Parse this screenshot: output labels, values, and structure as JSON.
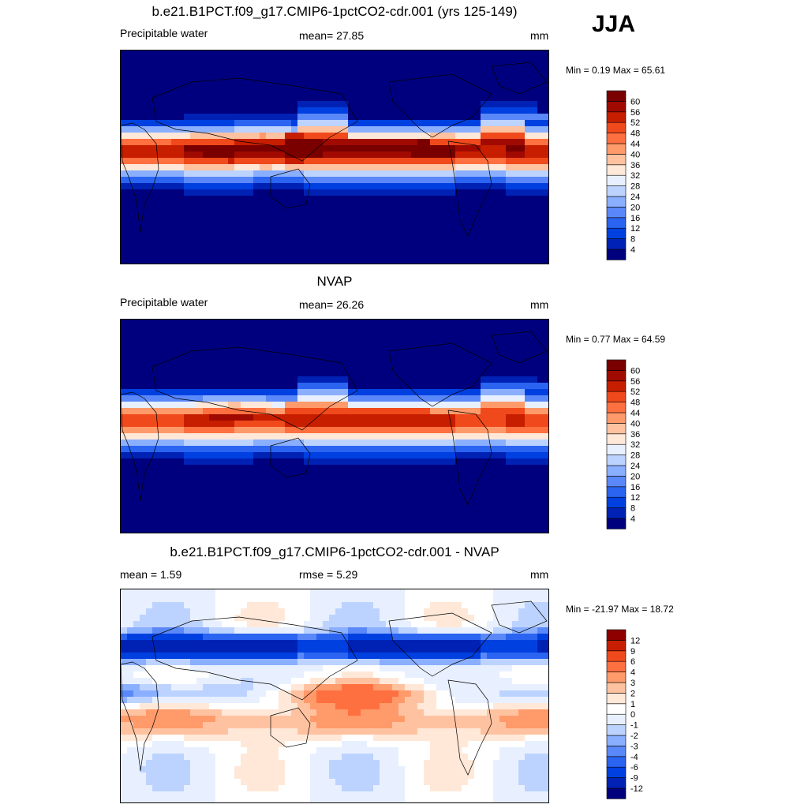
{
  "season": "JJA",
  "colors": {
    "levels14": [
      "#00007f",
      "#0022b4",
      "#0040e0",
      "#2a64f0",
      "#5a88f8",
      "#8bafff",
      "#bdd3ff",
      "#e8f0ff",
      "#ffe8d8",
      "#ffc2a0",
      "#ff9a6a",
      "#ff7040",
      "#f04a1c",
      "#c81e00",
      "#8c0000"
    ],
    "diff15": [
      "#00007f",
      "#0022b4",
      "#0040e0",
      "#2a64f0",
      "#5a88f8",
      "#8bafff",
      "#bdd3ff",
      "#e8f0ff",
      "#ffffff",
      "#ffe8d8",
      "#ffc2a0",
      "#ff9a6a",
      "#ff7040",
      "#f04a1c",
      "#c81e00",
      "#8c0000"
    ]
  },
  "panels": [
    {
      "title": "b.e21.B1PCT.f09_g17.CMIP6-1pctCO2-cdr.001 (yrs 125-149)",
      "left": "Precipitable water",
      "center": "mean=  27.85",
      "right": "mm",
      "minmax": "Min =   0.19 Max =  65.61",
      "levels": [
        "4",
        "8",
        "12",
        "16",
        "20",
        "24",
        "28",
        "32",
        "36",
        "40",
        "44",
        "48",
        "52",
        "56",
        "60"
      ]
    },
    {
      "title": "NVAP",
      "left": "Precipitable water",
      "center": "mean=  26.26",
      "right": "mm",
      "minmax": "Min =   0.77 Max =  64.59",
      "levels": [
        "4",
        "8",
        "12",
        "16",
        "20",
        "24",
        "28",
        "32",
        "36",
        "40",
        "44",
        "48",
        "52",
        "56",
        "60"
      ]
    },
    {
      "title": "b.e21.B1PCT.f09_g17.CMIP6-1pctCO2-cdr.001 - NVAP",
      "left": "mean =   1.59",
      "center": "rmse =   5.29",
      "right": "mm",
      "minmax": "Min = -21.97 Max =  18.72",
      "levels": [
        "-12",
        "-9",
        "-6",
        "-4",
        "-3",
        "-2",
        "-1",
        "0",
        "1",
        "2",
        "3",
        "4",
        "6",
        "9",
        "12"
      ]
    }
  ],
  "chart_data": [
    {
      "type": "heatmap",
      "title": "b.e21.B1PCT.f09_g17.CMIP6-1pctCO2-cdr.001 (yrs 125-149)",
      "variable": "Precipitable water",
      "units": "mm",
      "mean": 27.85,
      "min": 0.19,
      "max": 65.61,
      "contour_levels": [
        4,
        8,
        12,
        16,
        20,
        24,
        28,
        32,
        36,
        40,
        44,
        48,
        52,
        56,
        60
      ]
    },
    {
      "type": "heatmap",
      "title": "NVAP",
      "variable": "Precipitable water",
      "units": "mm",
      "mean": 26.26,
      "min": 0.77,
      "max": 64.59,
      "contour_levels": [
        4,
        8,
        12,
        16,
        20,
        24,
        28,
        32,
        36,
        40,
        44,
        48,
        52,
        56,
        60
      ]
    },
    {
      "type": "heatmap",
      "title": "b.e21.B1PCT.f09_g17.CMIP6-1pctCO2-cdr.001 - NVAP",
      "units": "mm",
      "mean": 1.59,
      "rmse": 5.29,
      "min": -21.97,
      "max": 18.72,
      "contour_levels": [
        -12,
        -9,
        -6,
        -4,
        -3,
        -2,
        -1,
        0,
        1,
        2,
        3,
        4,
        6,
        9,
        12
      ]
    }
  ]
}
